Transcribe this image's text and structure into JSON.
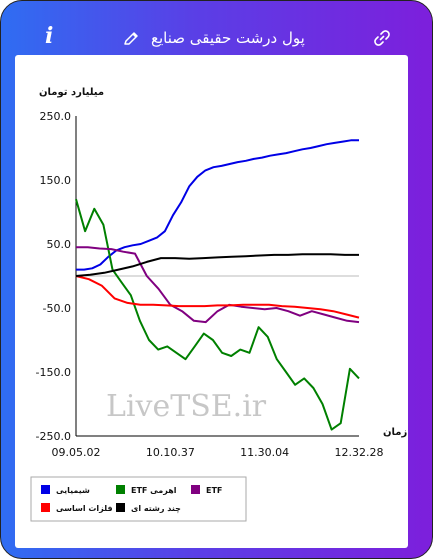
{
  "header": {
    "info_icon": "i",
    "title": "پول درشت حقیقی صنایع",
    "pencil_icon": "pencil-icon",
    "link_icon": "link-icon"
  },
  "colors": {
    "header_start": "#2f6df2",
    "header_end": "#7d1fdc",
    "blue": "#0000e6",
    "green": "#008000",
    "purple": "#800080",
    "red": "#ff0000",
    "black": "#000000"
  },
  "watermark": "LiveTSE.ir",
  "chart_data": {
    "type": "line",
    "ylabel": "میلیارد تومان",
    "xlabel": "زمان",
    "ylim": [
      -250,
      250
    ],
    "yticks": [
      "250.0",
      "150.0",
      "50.0",
      "-50.0",
      "-150.0",
      "-250.0"
    ],
    "xticks": [
      "09.05.02",
      "10.10.37",
      "11.30.04",
      "12.32.28"
    ],
    "legend": "bottom",
    "series": [
      {
        "name": "شیمیایی",
        "color": "#0000e6",
        "values": [
          10,
          10,
          12,
          18,
          30,
          40,
          45,
          48,
          50,
          55,
          60,
          70,
          95,
          115,
          140,
          155,
          165,
          170,
          172,
          175,
          178,
          180,
          183,
          185,
          188,
          190,
          192,
          195,
          198,
          200,
          203,
          206,
          208,
          210,
          212,
          212
        ]
      },
      {
        "name": "ETF اهرمی",
        "color": "#008000",
        "values": [
          120,
          70,
          105,
          80,
          10,
          -10,
          -30,
          -70,
          -100,
          -115,
          -110,
          -120,
          -130,
          -110,
          -90,
          -100,
          -120,
          -125,
          -115,
          -120,
          -80,
          -95,
          -130,
          -150,
          -170,
          -160,
          -175,
          -200,
          -240,
          -230,
          -145,
          -160
        ]
      },
      {
        "name": "ETF",
        "color": "#800080",
        "values": [
          45,
          45,
          43,
          42,
          38,
          35,
          0,
          -20,
          -45,
          -55,
          -70,
          -72,
          -55,
          -45,
          -48,
          -50,
          -52,
          -50,
          -55,
          -62,
          -55,
          -60,
          -65,
          -70,
          -72
        ]
      },
      {
        "name": "فلزات اساسی",
        "color": "#ff0000",
        "values": [
          0,
          -5,
          -15,
          -35,
          -42,
          -45,
          -45,
          -46,
          -47,
          -47,
          -47,
          -46,
          -46,
          -45,
          -45,
          -45,
          -47,
          -48,
          -50,
          -52,
          -55,
          -60,
          -65
        ]
      },
      {
        "name": "چند رشته ای",
        "color": "#000000",
        "values": [
          0,
          2,
          5,
          10,
          15,
          22,
          28,
          28,
          27,
          28,
          29,
          30,
          31,
          32,
          33,
          33,
          34,
          34,
          34,
          33,
          33
        ]
      }
    ]
  }
}
